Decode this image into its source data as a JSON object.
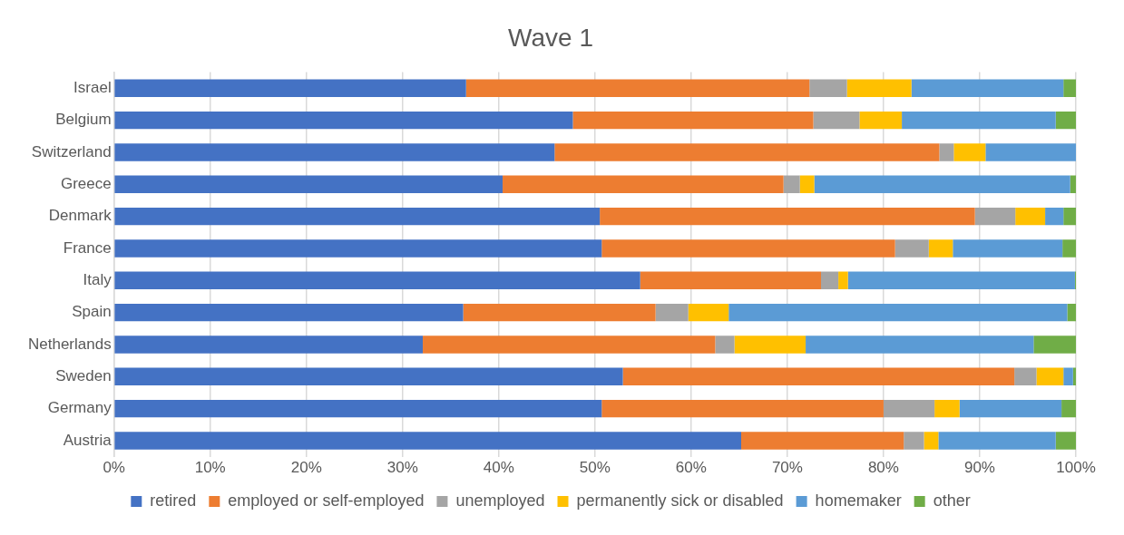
{
  "chart_data": {
    "type": "bar",
    "title": "Wave 1",
    "orientation": "horizontal",
    "stacked": true,
    "categories": [
      "Israel",
      "Belgium",
      "Switzerland",
      "Greece",
      "Denmark",
      "France",
      "Italy",
      "Spain",
      "Netherlands",
      "Sweden",
      "Germany",
      "Austria"
    ],
    "series": [
      {
        "name": "retired",
        "color": "#4472c4",
        "values": [
          36.6,
          47.7,
          45.8,
          40.4,
          50.5,
          50.7,
          54.7,
          36.3,
          32.1,
          52.9,
          50.7,
          65.2
        ]
      },
      {
        "name": "employed or self-employed",
        "color": "#ed7d31",
        "values": [
          35.7,
          25.0,
          40.0,
          29.2,
          39.0,
          30.5,
          18.8,
          20.0,
          30.4,
          40.7,
          29.3,
          16.9
        ]
      },
      {
        "name": "unemployed",
        "color": "#a5a5a5",
        "values": [
          3.9,
          4.8,
          1.5,
          1.7,
          4.2,
          3.5,
          1.8,
          3.4,
          2.0,
          2.3,
          5.3,
          2.1
        ]
      },
      {
        "name": "permanently sick or disabled",
        "color": "#ffc000",
        "values": [
          6.7,
          4.4,
          3.3,
          1.5,
          3.1,
          2.5,
          1.0,
          4.2,
          7.4,
          2.8,
          2.6,
          1.5
        ]
      },
      {
        "name": "homemaker",
        "color": "#5b9bd5",
        "values": [
          15.8,
          16.0,
          9.4,
          26.6,
          1.9,
          11.4,
          23.6,
          35.2,
          23.7,
          1.0,
          10.6,
          12.2
        ]
      },
      {
        "name": "other",
        "color": "#70ad47",
        "values": [
          1.3,
          2.1,
          0,
          0.6,
          1.3,
          1.4,
          0.1,
          0.9,
          4.4,
          0.3,
          1.5,
          2.1
        ]
      }
    ],
    "xlim": [
      0,
      100
    ],
    "xticks": [
      {
        "value": 0,
        "label": "0%"
      },
      {
        "value": 10,
        "label": "10%"
      },
      {
        "value": 20,
        "label": "20%"
      },
      {
        "value": 30,
        "label": "30%"
      },
      {
        "value": 40,
        "label": "40%"
      },
      {
        "value": 50,
        "label": "50%"
      },
      {
        "value": 60,
        "label": "60%"
      },
      {
        "value": 70,
        "label": "70%"
      },
      {
        "value": 80,
        "label": "80%"
      },
      {
        "value": 90,
        "label": "90%"
      },
      {
        "value": 100,
        "label": "100%"
      }
    ],
    "grid": "x",
    "legend": "bottom"
  }
}
